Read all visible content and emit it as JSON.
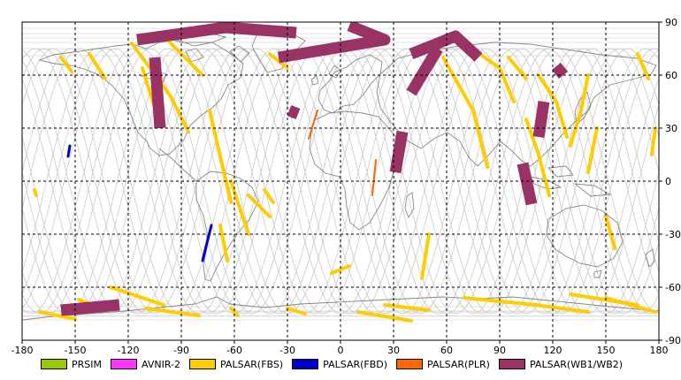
{
  "map": {
    "lon_range": [
      -180,
      180
    ],
    "lat_range": [
      -90,
      90
    ],
    "x_ticks": [
      -180,
      -150,
      -120,
      -90,
      -60,
      -30,
      0,
      30,
      60,
      90,
      120,
      150,
      180
    ],
    "y_ticks": [
      90,
      60,
      30,
      0,
      -30,
      -60,
      -90
    ],
    "x_tick_labels": [
      "-180",
      "-150",
      "-120",
      "-90",
      "-60",
      "-30",
      "0",
      "30",
      "60",
      "90",
      "120",
      "150",
      "180"
    ],
    "y_tick_labels": [
      "90",
      "60",
      "30",
      "0",
      "-30",
      "-60",
      "-90"
    ],
    "grid": "dashed",
    "colors": {
      "prism": "#99cc00",
      "avnir2": "#ff33ff",
      "fbs": "#ffcc00",
      "fbd": "#0000cc",
      "plr": "#ff6600",
      "wb": "#993366",
      "orbit": "#c8c8c8",
      "coast": "#888888"
    }
  },
  "legend": {
    "items": [
      {
        "label": "PRSIM",
        "color": "#99cc00"
      },
      {
        "label": "AVNIR-2",
        "color": "#ff33ff"
      },
      {
        "label": "PALSAR(FBS)",
        "color": "#ffcc00"
      },
      {
        "label": "PALSAR(FBD)",
        "color": "#0000cc"
      },
      {
        "label": "PALSAR(PLR)",
        "color": "#ff6600"
      },
      {
        "label": "PALSAR(WB1/WB2)",
        "color": "#993366"
      }
    ]
  },
  "swaths": {
    "fbs": [
      [
        [
          -158,
          70
        ],
        [
          -152,
          62
        ]
      ],
      [
        [
          -142,
          72
        ],
        [
          -133,
          58
        ]
      ],
      [
        [
          -118,
          78
        ],
        [
          -96,
          48
        ],
        [
          -86,
          28
        ]
      ],
      [
        [
          -112,
          64
        ],
        [
          -104,
          38
        ]
      ],
      [
        [
          -100,
          82
        ],
        [
          -78,
          60
        ]
      ],
      [
        [
          -74,
          40
        ],
        [
          -62,
          -12
        ]
      ],
      [
        [
          -62,
          0
        ],
        [
          -52,
          -30
        ]
      ],
      [
        [
          -52,
          -8
        ],
        [
          -40,
          -20
        ]
      ],
      [
        [
          -68,
          -25
        ],
        [
          -64,
          -45
        ]
      ],
      [
        [
          -43,
          -5
        ],
        [
          -38,
          -12
        ]
      ],
      [
        [
          -40,
          72
        ],
        [
          -30,
          64
        ]
      ],
      [
        [
          -173,
          -5
        ],
        [
          -172,
          -8
        ]
      ],
      [
        [
          5,
          -48
        ],
        [
          -5,
          -52
        ]
      ],
      [
        [
          50,
          -30
        ],
        [
          46,
          -55
        ]
      ],
      [
        [
          58,
          70
        ],
        [
          75,
          40
        ],
        [
          83,
          8
        ]
      ],
      [
        [
          70,
          78
        ],
        [
          90,
          64
        ],
        [
          98,
          45
        ]
      ],
      [
        [
          95,
          70
        ],
        [
          105,
          58
        ]
      ],
      [
        [
          105,
          35
        ],
        [
          112,
          15
        ],
        [
          118,
          -8
        ]
      ],
      [
        [
          112,
          60
        ],
        [
          122,
          45
        ],
        [
          128,
          25
        ]
      ],
      [
        [
          140,
          60
        ],
        [
          136,
          40
        ],
        [
          130,
          20
        ]
      ],
      [
        [
          145,
          30
        ],
        [
          140,
          5
        ]
      ],
      [
        [
          150,
          -20
        ],
        [
          155,
          -38
        ]
      ],
      [
        [
          168,
          72
        ],
        [
          174,
          58
        ]
      ],
      [
        [
          -30,
          -72
        ],
        [
          -20,
          -75
        ]
      ],
      [
        [
          10,
          -74
        ],
        [
          40,
          -79
        ]
      ],
      [
        [
          25,
          -70
        ],
        [
          50,
          -73
        ]
      ],
      [
        [
          70,
          -66
        ],
        [
          110,
          -70
        ]
      ],
      [
        [
          110,
          -70
        ],
        [
          140,
          -74
        ]
      ],
      [
        [
          -110,
          -72
        ],
        [
          -80,
          -76
        ]
      ],
      [
        [
          -170,
          -74
        ],
        [
          -150,
          -78
        ]
      ],
      [
        [
          -62,
          -72
        ],
        [
          -58,
          -76
        ]
      ],
      [
        [
          150,
          -66
        ],
        [
          178,
          -74
        ]
      ],
      [
        [
          130,
          -64
        ],
        [
          168,
          -70
        ]
      ],
      [
        [
          -148,
          -67
        ],
        [
          -135,
          -72
        ]
      ],
      [
        [
          178,
          30
        ],
        [
          176,
          15
        ]
      ],
      [
        [
          -130,
          -60
        ],
        [
          -100,
          -70
        ]
      ]
    ],
    "fbd": [
      [
        [
          -73,
          -25
        ],
        [
          -78,
          -45
        ]
      ],
      [
        [
          -154,
          14
        ],
        [
          -153,
          20
        ]
      ]
    ],
    "plr": [
      [
        [
          -18,
          24
        ],
        [
          -13,
          40
        ]
      ],
      [
        [
          18,
          -8
        ],
        [
          20,
          12
        ]
      ]
    ],
    "wb": [
      [
        [
          -115,
          80
        ],
        [
          -65,
          87
        ],
        [
          -25,
          84
        ]
      ],
      [
        [
          -35,
          70
        ],
        [
          25,
          80
        ],
        [
          5,
          88
        ]
      ],
      [
        [
          40,
          72
        ],
        [
          65,
          82
        ],
        [
          78,
          70
        ]
      ],
      [
        [
          -105,
          70
        ],
        [
          -102,
          30
        ]
      ],
      [
        [
          35,
          28
        ],
        [
          31,
          5
        ]
      ],
      [
        [
          40,
          50
        ],
        [
          55,
          75
        ]
      ],
      [
        [
          103,
          10
        ],
        [
          108,
          -13
        ]
      ],
      [
        [
          115,
          45
        ],
        [
          112,
          25
        ]
      ],
      [
        [
          -29,
          40
        ],
        [
          -24,
          38
        ]
      ],
      [
        [
          122,
          65
        ],
        [
          126,
          60
        ]
      ],
      [
        [
          -158,
          -73
        ],
        [
          -125,
          -70
        ]
      ]
    ]
  }
}
